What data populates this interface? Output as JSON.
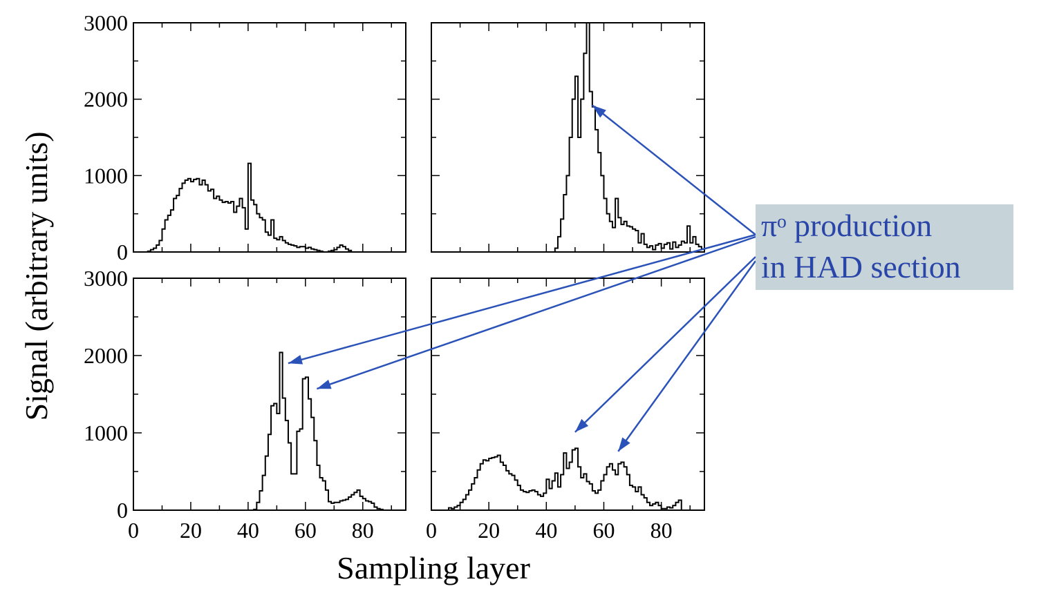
{
  "chart_data": {
    "type": "line",
    "style": "step-histogram",
    "layout": "2x2 panels with shared axes",
    "xlabel": "Sampling layer",
    "ylabel": "Signal (arbitrary units)",
    "xlim": [
      0,
      95
    ],
    "ylim": [
      0,
      3000
    ],
    "x_ticks": [
      0,
      20,
      40,
      60,
      80
    ],
    "y_ticks": [
      0,
      1000,
      2000,
      3000
    ],
    "line_color": "#000000",
    "panels": [
      {
        "position": "top-left",
        "series": [
          {
            "x": [
              1,
              2,
              3,
              4,
              5,
              6,
              7,
              8,
              9,
              10,
              11,
              12,
              13,
              14,
              15,
              16,
              17,
              18,
              19,
              20,
              21,
              22,
              23,
              24,
              25,
              26,
              27,
              28,
              29,
              30,
              31,
              32,
              33,
              34,
              35,
              36,
              37,
              38,
              39,
              40,
              41,
              42,
              43,
              44,
              45,
              46,
              47,
              48,
              49,
              50,
              51,
              52,
              53,
              54,
              55,
              56,
              57,
              58,
              59,
              60,
              61,
              62,
              63,
              64,
              65,
              66,
              67,
              68,
              69,
              70,
              71,
              72,
              73,
              74,
              75,
              76,
              77,
              78,
              79,
              80,
              81,
              82,
              83,
              84,
              85,
              86,
              87,
              88,
              89,
              90,
              91,
              92,
              93,
              94,
              95
            ],
            "y": [
              0,
              0,
              0,
              0,
              0,
              10,
              30,
              50,
              90,
              150,
              300,
              420,
              480,
              550,
              700,
              740,
              830,
              900,
              940,
              960,
              920,
              950,
              960,
              880,
              940,
              880,
              800,
              820,
              700,
              730,
              680,
              650,
              660,
              640,
              660,
              520,
              600,
              700,
              580,
              300,
              1160,
              680,
              620,
              500,
              450,
              420,
              260,
              220,
              420,
              180,
              160,
              200,
              150,
              120,
              100,
              90,
              80,
              60,
              70,
              70,
              50,
              60,
              40,
              30,
              20,
              10,
              0,
              0,
              10,
              20,
              30,
              60,
              90,
              70,
              40,
              20,
              0,
              0,
              0,
              0,
              0,
              0,
              0,
              0,
              0,
              0,
              0,
              0,
              0,
              0,
              0,
              0,
              0,
              0,
              0
            ]
          }
        ]
      },
      {
        "position": "top-right",
        "series": [
          {
            "x": [
              1,
              2,
              3,
              4,
              5,
              6,
              7,
              8,
              9,
              10,
              11,
              12,
              13,
              14,
              15,
              16,
              17,
              18,
              19,
              20,
              21,
              22,
              23,
              24,
              25,
              26,
              27,
              28,
              29,
              30,
              31,
              32,
              33,
              34,
              35,
              36,
              37,
              38,
              39,
              40,
              41,
              42,
              43,
              44,
              45,
              46,
              47,
              48,
              49,
              50,
              51,
              52,
              53,
              54,
              55,
              56,
              57,
              58,
              59,
              60,
              61,
              62,
              63,
              64,
              65,
              66,
              67,
              68,
              69,
              70,
              71,
              72,
              73,
              74,
              75,
              76,
              77,
              78,
              79,
              80,
              81,
              82,
              83,
              84,
              85,
              86,
              87,
              88,
              89,
              90,
              91,
              92,
              93,
              94,
              95
            ],
            "y": [
              0,
              0,
              0,
              0,
              0,
              0,
              0,
              0,
              0,
              0,
              0,
              0,
              0,
              0,
              0,
              0,
              0,
              0,
              0,
              0,
              0,
              0,
              0,
              0,
              0,
              0,
              0,
              0,
              0,
              0,
              0,
              0,
              0,
              0,
              0,
              0,
              0,
              0,
              0,
              0,
              0,
              0,
              0,
              50,
              200,
              430,
              750,
              1000,
              1500,
              2000,
              2300,
              1500,
              2000,
              2600,
              3000,
              2100,
              1900,
              1600,
              1300,
              1000,
              700,
              500,
              400,
              320,
              700,
              450,
              360,
              400,
              340,
              330,
              300,
              280,
              120,
              240,
              100,
              60,
              80,
              30,
              90,
              110,
              50,
              100,
              120,
              40,
              130,
              60,
              90,
              140,
              120,
              340,
              120,
              200,
              100,
              70,
              40
            ]
          }
        ]
      },
      {
        "position": "bottom-left",
        "series": [
          {
            "x": [
              1,
              2,
              3,
              4,
              5,
              6,
              7,
              8,
              9,
              10,
              11,
              12,
              13,
              14,
              15,
              16,
              17,
              18,
              19,
              20,
              21,
              22,
              23,
              24,
              25,
              26,
              27,
              28,
              29,
              30,
              31,
              32,
              33,
              34,
              35,
              36,
              37,
              38,
              39,
              40,
              41,
              42,
              43,
              44,
              45,
              46,
              47,
              48,
              49,
              50,
              51,
              52,
              53,
              54,
              55,
              56,
              57,
              58,
              59,
              60,
              61,
              62,
              63,
              64,
              65,
              66,
              67,
              68,
              69,
              70,
              71,
              72,
              73,
              74,
              75,
              76,
              77,
              78,
              79,
              80,
              81,
              82,
              83,
              84,
              85,
              86,
              87,
              88,
              89,
              90,
              91,
              92,
              93,
              94,
              95
            ],
            "y": [
              0,
              0,
              0,
              0,
              0,
              0,
              0,
              0,
              0,
              0,
              0,
              0,
              0,
              0,
              0,
              0,
              0,
              0,
              0,
              0,
              0,
              0,
              0,
              0,
              0,
              0,
              0,
              0,
              0,
              0,
              0,
              0,
              0,
              0,
              0,
              0,
              0,
              0,
              0,
              0,
              0,
              0,
              10,
              100,
              250,
              450,
              700,
              980,
              1350,
              1380,
              1250,
              2040,
              1450,
              1160,
              870,
              470,
              470,
              1020,
              1050,
              1700,
              1720,
              1440,
              1200,
              900,
              580,
              420,
              380,
              260,
              110,
              90,
              100,
              100,
              120,
              130,
              140,
              170,
              200,
              230,
              260,
              180,
              150,
              120,
              110,
              90,
              40,
              20,
              10,
              0,
              0,
              0,
              0,
              0,
              0,
              0,
              0
            ]
          }
        ]
      },
      {
        "position": "bottom-right",
        "series": [
          {
            "x": [
              1,
              2,
              3,
              4,
              5,
              6,
              7,
              8,
              9,
              10,
              11,
              12,
              13,
              14,
              15,
              16,
              17,
              18,
              19,
              20,
              21,
              22,
              23,
              24,
              25,
              26,
              27,
              28,
              29,
              30,
              31,
              32,
              33,
              34,
              35,
              36,
              37,
              38,
              39,
              40,
              41,
              42,
              43,
              44,
              45,
              46,
              47,
              48,
              49,
              50,
              51,
              52,
              53,
              54,
              55,
              56,
              57,
              58,
              59,
              60,
              61,
              62,
              63,
              64,
              65,
              66,
              67,
              68,
              69,
              70,
              71,
              72,
              73,
              74,
              75,
              76,
              77,
              78,
              79,
              80,
              81,
              82,
              83,
              84,
              85,
              86,
              87,
              88,
              89,
              90,
              91,
              92,
              93,
              94,
              95
            ],
            "y": [
              0,
              0,
              0,
              0,
              0,
              0,
              30,
              20,
              40,
              60,
              100,
              140,
              200,
              260,
              340,
              420,
              520,
              600,
              650,
              640,
              670,
              680,
              690,
              710,
              620,
              580,
              510,
              470,
              450,
              390,
              320,
              260,
              240,
              230,
              250,
              260,
              240,
              200,
              180,
              220,
              400,
              280,
              380,
              480,
              300,
              460,
              740,
              540,
              620,
              780,
              800,
              560,
              420,
              470,
              370,
              340,
              250,
              220,
              260,
              380,
              460,
              560,
              600,
              520,
              460,
              600,
              620,
              560,
              460,
              320,
              300,
              240,
              300,
              200,
              160,
              100,
              60,
              80,
              100,
              60,
              20,
              20,
              40,
              30,
              60,
              100,
              130,
              0,
              0,
              0,
              0,
              0,
              0,
              0,
              0
            ]
          }
        ]
      }
    ],
    "annotation": {
      "lines": [
        "πᵒ production",
        "in HAD section"
      ],
      "text_color": "#2a45a8",
      "box_color": "#c6d4d9",
      "arrow_color": "#2a52b8",
      "arrows_point_to": [
        {
          "panel": "top-right",
          "x": 56,
          "y": 1920
        },
        {
          "panel": "bottom-left",
          "x": 54,
          "y": 1900
        },
        {
          "panel": "bottom-left",
          "x": 64,
          "y": 1570
        },
        {
          "panel": "bottom-right",
          "x": 50,
          "y": 1010
        },
        {
          "panel": "bottom-right",
          "x": 65,
          "y": 760
        }
      ]
    }
  }
}
